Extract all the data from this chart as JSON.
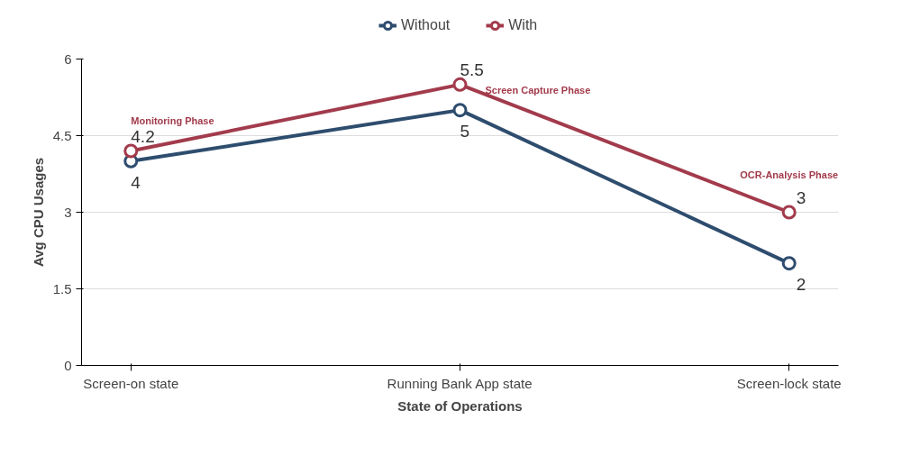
{
  "chart_data": {
    "type": "line",
    "xlabel": "State of Operations",
    "ylabel": "Avg CPU Usages",
    "categories": [
      "Screen-on state",
      "Running Bank App state",
      "Screen-lock state"
    ],
    "series": [
      {
        "name": "Without",
        "color": "#2e4d6e",
        "values": [
          4,
          5,
          2
        ]
      },
      {
        "name": "With",
        "color": "#a23b4c",
        "values": [
          4.2,
          5.5,
          3
        ]
      }
    ],
    "ylim": [
      0,
      6
    ],
    "yticks": [
      0,
      1.5,
      3,
      4.5,
      6
    ],
    "grid": "y",
    "legend": "top",
    "marker": "circle",
    "line_style": "solid",
    "data_labels": true,
    "annotations": [
      {
        "text": "Monitoring Phase",
        "x": "Screen-on state",
        "y": 4.2
      },
      {
        "text": "Screen Capture Phase",
        "x": "Running Bank App state",
        "y": 5.5
      },
      "OCR-Analysis Phase"
    ]
  }
}
